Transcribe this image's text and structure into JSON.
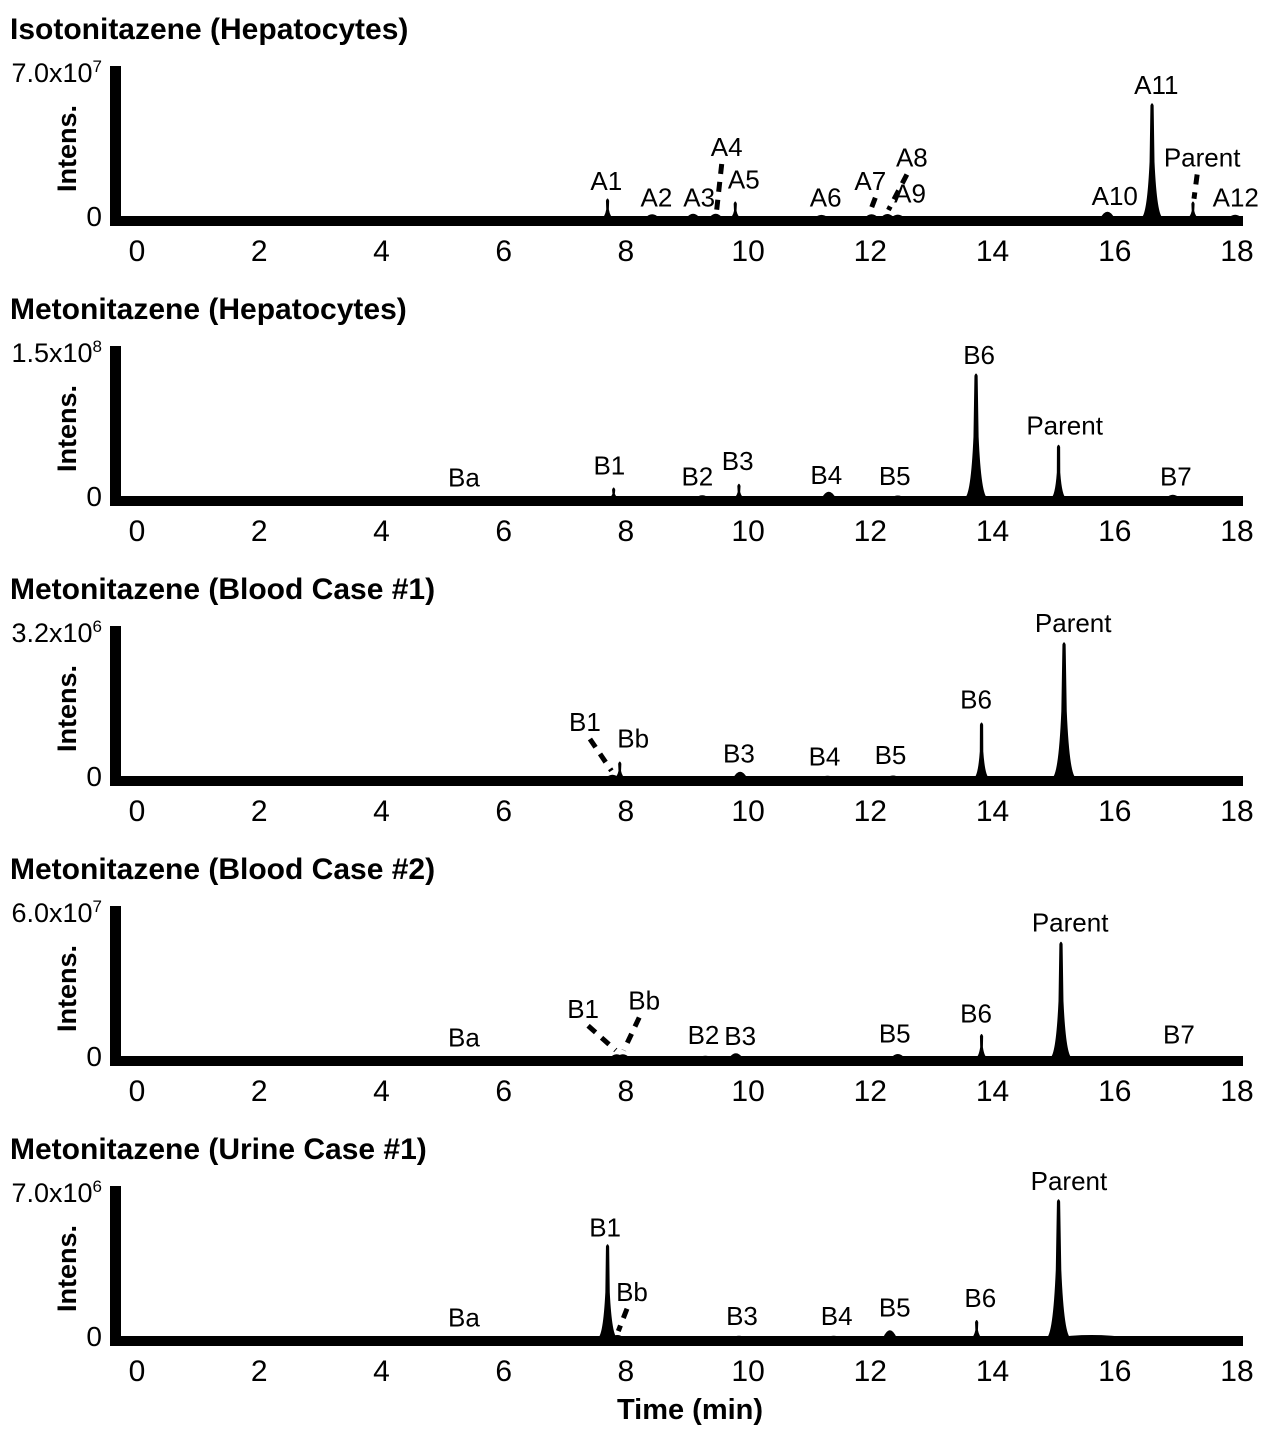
{
  "xlabel": "Time (min)",
  "chart_data": [
    {
      "type": "line",
      "title": "Isotonitazene (Hepatocytes)",
      "ylabel": "Intens.",
      "xlim": [
        0,
        18
      ],
      "ylim": [
        0,
        70000000
      ],
      "y_axis": {
        "scale_mantissa": "7.0x10",
        "scale_exponent": "7",
        "scale_value": 70000000,
        "zero_label": "0"
      },
      "x_axis": {
        "ticks": [
          0,
          2,
          4,
          6,
          8,
          10,
          12,
          14,
          16,
          18
        ]
      },
      "peaks": [
        {
          "label": "A1",
          "rt": 7.7,
          "h": 0.115,
          "lx": 7.68,
          "lh": 0.175
        },
        {
          "label": "A2",
          "rt": 8.43,
          "h": 0.018,
          "lx": 8.5,
          "lh": 0.065
        },
        {
          "label": "A3",
          "rt": 9.1,
          "h": 0.022,
          "lx": 9.2,
          "lh": 0.065
        },
        {
          "label": "A4",
          "rt": 9.47,
          "h": 0.022,
          "lx": 9.65,
          "lh": 0.4,
          "leader": true
        },
        {
          "label": "A5",
          "rt": 9.79,
          "h": 0.095,
          "lx": 9.93,
          "lh": 0.185
        },
        {
          "label": "A6",
          "rt": 11.2,
          "h": 0.014,
          "lx": 11.27,
          "lh": 0.065
        },
        {
          "label": "A7",
          "rt": 12.02,
          "h": 0.018,
          "lx": 12.0,
          "lh": 0.175,
          "leader": true
        },
        {
          "label": "A8",
          "rt": 12.28,
          "h": 0.02,
          "lx": 12.68,
          "lh": 0.33,
          "leader": true
        },
        {
          "label": "A9",
          "rt": 12.45,
          "h": 0.016,
          "lx": 12.65,
          "lh": 0.09
        },
        {
          "label": "A10",
          "rt": 15.88,
          "h": 0.035,
          "lx": 16.0,
          "lh": 0.075
        },
        {
          "label": "A11",
          "rt": 16.61,
          "h": 0.75,
          "lx": 16.68,
          "lh": 0.815
        },
        {
          "label": "Parent",
          "rt": 17.28,
          "h": 0.095,
          "lx": 17.43,
          "lh": 0.33,
          "leader": true
        },
        {
          "label": "A12",
          "rt": 17.97,
          "h": 0.015,
          "lx": 17.98,
          "lh": 0.065
        }
      ]
    },
    {
      "type": "line",
      "title": "Metonitazene (Hepatocytes)",
      "ylabel": "Intens.",
      "xlim": [
        0,
        18
      ],
      "ylim": [
        0,
        150000000
      ],
      "y_axis": {
        "scale_mantissa": "1.5x10",
        "scale_exponent": "8",
        "scale_value": 150000000,
        "zero_label": "0"
      },
      "x_axis": {
        "ticks": [
          0,
          2,
          4,
          6,
          8,
          10,
          12,
          14,
          16,
          18
        ]
      },
      "peaks": [
        {
          "label": "Ba",
          "rt": 5.35,
          "h": 0,
          "lx": 5.35,
          "lh": 0.065
        },
        {
          "label": "B1",
          "rt": 7.8,
          "h": 0.055,
          "lx": 7.73,
          "lh": 0.145
        },
        {
          "label": "B2",
          "rt": 9.25,
          "h": 0.012,
          "lx": 9.17,
          "lh": 0.07
        },
        {
          "label": "B3",
          "rt": 9.85,
          "h": 0.08,
          "lx": 9.83,
          "lh": 0.175
        },
        {
          "label": "B4",
          "rt": 11.32,
          "h": 0.035,
          "lx": 11.28,
          "lh": 0.08
        },
        {
          "label": "B5",
          "rt": 12.45,
          "h": 0.01,
          "lx": 12.4,
          "lh": 0.075
        },
        {
          "label": "B6",
          "rt": 13.73,
          "h": 0.815,
          "lx": 13.78,
          "lh": 0.88
        },
        {
          "label": "Parent",
          "rt": 15.08,
          "h": 0.34,
          "lx": 15.18,
          "lh": 0.41
        },
        {
          "label": "B7",
          "rt": 16.95,
          "h": 0.015,
          "lx": 17.0,
          "lh": 0.07
        }
      ]
    },
    {
      "type": "line",
      "title": "Metonitazene (Blood Case #1)",
      "ylabel": "Intens.",
      "xlim": [
        0,
        18
      ],
      "ylim": [
        0,
        3200000
      ],
      "y_axis": {
        "scale_mantissa": "3.2x10",
        "scale_exponent": "6",
        "scale_value": 3200000,
        "zero_label": "0"
      },
      "x_axis": {
        "ticks": [
          0,
          2,
          4,
          6,
          8,
          10,
          12,
          14,
          16,
          18
        ]
      },
      "peaks": [
        {
          "label": "B1",
          "rt": 7.78,
          "h": 0.015,
          "lx": 7.33,
          "lh": 0.3,
          "leader": true
        },
        {
          "label": "Bb",
          "rt": 7.9,
          "h": 0.095,
          "lx": 8.12,
          "lh": 0.19
        },
        {
          "label": "B3",
          "rt": 9.87,
          "h": 0.035,
          "lx": 9.85,
          "lh": 0.09
        },
        {
          "label": "B4",
          "rt": 11.3,
          "h": 0.008,
          "lx": 11.25,
          "lh": 0.07
        },
        {
          "label": "B5",
          "rt": 12.37,
          "h": 0.01,
          "lx": 12.33,
          "lh": 0.08
        },
        {
          "label": "B6",
          "rt": 13.82,
          "h": 0.355,
          "lx": 13.73,
          "lh": 0.45
        },
        {
          "label": "Parent",
          "rt": 15.17,
          "h": 0.89,
          "lx": 15.32,
          "lh": 0.96
        }
      ]
    },
    {
      "type": "line",
      "title": "Metonitazene (Blood Case #2)",
      "ylabel": "Intens.",
      "xlim": [
        0,
        18
      ],
      "ylim": [
        0,
        60000000
      ],
      "y_axis": {
        "scale_mantissa": "6.0x10",
        "scale_exponent": "7",
        "scale_value": 60000000,
        "zero_label": "0"
      },
      "x_axis": {
        "ticks": [
          0,
          2,
          4,
          6,
          8,
          10,
          12,
          14,
          16,
          18
        ]
      },
      "peaks": [
        {
          "label": "Ba",
          "rt": 5.35,
          "h": 0,
          "lx": 5.35,
          "lh": 0.065
        },
        {
          "label": "B1",
          "rt": 7.85,
          "h": 0.018,
          "lx": 7.3,
          "lh": 0.255,
          "leader": true
        },
        {
          "label": "Bb",
          "rt": 7.95,
          "h": 0.018,
          "lx": 8.3,
          "lh": 0.31,
          "leader": true
        },
        {
          "label": "B2",
          "rt": 9.3,
          "h": 0.008,
          "lx": 9.27,
          "lh": 0.08
        },
        {
          "label": "B3",
          "rt": 9.8,
          "h": 0.025,
          "lx": 9.87,
          "lh": 0.072
        },
        {
          "label": "B5",
          "rt": 12.45,
          "h": 0.02,
          "lx": 12.4,
          "lh": 0.09
        },
        {
          "label": "B6",
          "rt": 13.82,
          "h": 0.145,
          "lx": 13.73,
          "lh": 0.225
        },
        {
          "label": "Parent",
          "rt": 15.12,
          "h": 0.76,
          "lx": 15.27,
          "lh": 0.83
        },
        {
          "label": "B7",
          "rt": 17.05,
          "h": 0,
          "lx": 17.05,
          "lh": 0.085
        }
      ]
    },
    {
      "type": "line",
      "title": "Metonitazene (Urine Case #1)",
      "ylabel": "Intens.",
      "xlim": [
        0,
        18
      ],
      "ylim": [
        0,
        7000000
      ],
      "y_axis": {
        "scale_mantissa": "7.0x10",
        "scale_exponent": "6",
        "scale_value": 7000000,
        "zero_label": "0"
      },
      "x_axis": {
        "ticks": [
          0,
          2,
          4,
          6,
          8,
          10,
          12,
          14,
          16,
          18
        ]
      },
      "peaks": [
        {
          "label": "Ba",
          "rt": 5.35,
          "h": 0,
          "lx": 5.35,
          "lh": 0.065
        },
        {
          "label": "B1",
          "rt": 7.7,
          "h": 0.61,
          "lx": 7.66,
          "lh": 0.665
        },
        {
          "label": "Bb",
          "rt": 7.86,
          "h": 0.013,
          "lx": 8.1,
          "lh": 0.235,
          "leader": true
        },
        {
          "label": "B3",
          "rt": 9.85,
          "h": 0.008,
          "lx": 9.9,
          "lh": 0.075
        },
        {
          "label": "B4",
          "rt": 11.4,
          "h": 0.008,
          "lx": 11.45,
          "lh": 0.075
        },
        {
          "label": "B5",
          "rt": 12.32,
          "h": 0.045,
          "lx": 12.4,
          "lh": 0.13
        },
        {
          "label": "B6",
          "rt": 13.74,
          "h": 0.105,
          "lx": 13.8,
          "lh": 0.195
        },
        {
          "label": "Parent",
          "rt": 15.08,
          "h": 0.91,
          "lx": 15.25,
          "lh": 0.975
        },
        {
          "label": "",
          "rt": 15.62,
          "h": 0.013,
          "w": 40,
          "lx": 15.62,
          "lh": 0
        }
      ]
    }
  ]
}
